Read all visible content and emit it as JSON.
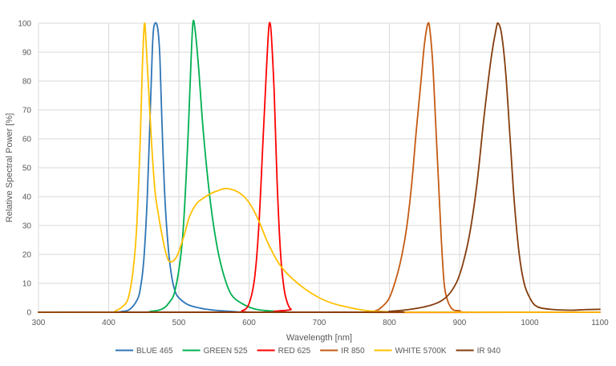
{
  "chart_data": {
    "type": "line",
    "title": "",
    "xlabel": "Wavelength [nm]",
    "ylabel": "Relative Spectral Power [%]",
    "xlim": [
      300,
      1100
    ],
    "ylim": [
      0,
      100
    ],
    "xticks": [
      300,
      400,
      500,
      600,
      700,
      800,
      900,
      1000,
      1100
    ],
    "yticks": [
      0,
      10,
      20,
      30,
      40,
      50,
      60,
      70,
      80,
      90,
      100
    ],
    "grid": true,
    "legend_position": "bottom",
    "series": [
      {
        "name": "BLUE 465",
        "color": "#2e75b6",
        "points": [
          [
            300,
            0
          ],
          [
            400,
            0
          ],
          [
            420,
            0.3
          ],
          [
            430,
            1
          ],
          [
            440,
            4
          ],
          [
            445,
            8
          ],
          [
            450,
            18
          ],
          [
            455,
            40
          ],
          [
            460,
            75
          ],
          [
            463,
            95
          ],
          [
            466,
            100
          ],
          [
            470,
            98
          ],
          [
            473,
            88
          ],
          [
            476,
            65
          ],
          [
            480,
            40
          ],
          [
            485,
            22
          ],
          [
            490,
            12
          ],
          [
            495,
            7
          ],
          [
            500,
            5
          ],
          [
            510,
            3
          ],
          [
            520,
            2
          ],
          [
            540,
            1
          ],
          [
            560,
            0.5
          ],
          [
            580,
            0.2
          ],
          [
            600,
            0
          ],
          [
            700,
            0
          ],
          [
            1100,
            0
          ]
        ]
      },
      {
        "name": "GREEN 525",
        "color": "#00b050",
        "points": [
          [
            300,
            0
          ],
          [
            440,
            0
          ],
          [
            460,
            0.3
          ],
          [
            475,
            1
          ],
          [
            485,
            3
          ],
          [
            495,
            8
          ],
          [
            505,
            25
          ],
          [
            512,
            55
          ],
          [
            517,
            85
          ],
          [
            520,
            100
          ],
          [
            523,
            98
          ],
          [
            528,
            85
          ],
          [
            535,
            62
          ],
          [
            545,
            38
          ],
          [
            555,
            22
          ],
          [
            565,
            12
          ],
          [
            575,
            6
          ],
          [
            590,
            3
          ],
          [
            610,
            1
          ],
          [
            640,
            0.3
          ],
          [
            660,
            0
          ],
          [
            1100,
            0
          ]
        ]
      },
      {
        "name": "RED 625",
        "color": "#ff0000",
        "points": [
          [
            300,
            0
          ],
          [
            570,
            0
          ],
          [
            590,
            0.5
          ],
          [
            600,
            3
          ],
          [
            608,
            12
          ],
          [
            614,
            30
          ],
          [
            620,
            60
          ],
          [
            625,
            85
          ],
          [
            628,
            98
          ],
          [
            630,
            100
          ],
          [
            632,
            95
          ],
          [
            636,
            75
          ],
          [
            640,
            45
          ],
          [
            645,
            20
          ],
          [
            650,
            8
          ],
          [
            655,
            3
          ],
          [
            660,
            1
          ],
          [
            670,
            0
          ],
          [
            1100,
            0
          ]
        ]
      },
      {
        "name": "IR 850",
        "color": "#c55a11",
        "points": [
          [
            300,
            0
          ],
          [
            760,
            0
          ],
          [
            780,
            0.5
          ],
          [
            790,
            2
          ],
          [
            800,
            5
          ],
          [
            810,
            12
          ],
          [
            818,
            20
          ],
          [
            825,
            30
          ],
          [
            832,
            45
          ],
          [
            838,
            62
          ],
          [
            845,
            80
          ],
          [
            850,
            93
          ],
          [
            855,
            100
          ],
          [
            858,
            97
          ],
          [
            862,
            85
          ],
          [
            866,
            65
          ],
          [
            870,
            45
          ],
          [
            874,
            25
          ],
          [
            878,
            10
          ],
          [
            883,
            4
          ],
          [
            890,
            1
          ],
          [
            900,
            0.5
          ],
          [
            920,
            0
          ],
          [
            1100,
            0
          ]
        ]
      },
      {
        "name": "WHITE 5700K",
        "color": "#ffc000",
        "points": [
          [
            300,
            0
          ],
          [
            400,
            0
          ],
          [
            410,
            0.5
          ],
          [
            420,
            2
          ],
          [
            428,
            5
          ],
          [
            435,
            15
          ],
          [
            440,
            30
          ],
          [
            445,
            60
          ],
          [
            448,
            85
          ],
          [
            451,
            100
          ],
          [
            454,
            90
          ],
          [
            458,
            72
          ],
          [
            462,
            55
          ],
          [
            466,
            42
          ],
          [
            470,
            35
          ],
          [
            475,
            28
          ],
          [
            480,
            22
          ],
          [
            485,
            18
          ],
          [
            490,
            17.5
          ],
          [
            495,
            18.5
          ],
          [
            500,
            21
          ],
          [
            508,
            27
          ],
          [
            515,
            33
          ],
          [
            525,
            37.5
          ],
          [
            535,
            39.5
          ],
          [
            545,
            41
          ],
          [
            555,
            42
          ],
          [
            565,
            42.8
          ],
          [
            575,
            42.5
          ],
          [
            585,
            41.5
          ],
          [
            595,
            39.5
          ],
          [
            605,
            36
          ],
          [
            615,
            31
          ],
          [
            625,
            25
          ],
          [
            635,
            20
          ],
          [
            645,
            16
          ],
          [
            660,
            12
          ],
          [
            680,
            8
          ],
          [
            700,
            5
          ],
          [
            720,
            3
          ],
          [
            740,
            1.8
          ],
          [
            760,
            0.8
          ],
          [
            780,
            0.3
          ],
          [
            800,
            0.1
          ],
          [
            820,
            0
          ],
          [
            1100,
            0
          ]
        ]
      },
      {
        "name": "IR 940",
        "color": "#843c0c",
        "points": [
          [
            300,
            0
          ],
          [
            780,
            0
          ],
          [
            800,
            0.3
          ],
          [
            830,
            1
          ],
          [
            860,
            2.5
          ],
          [
            880,
            5
          ],
          [
            895,
            10
          ],
          [
            905,
            17
          ],
          [
            915,
            28
          ],
          [
            925,
            45
          ],
          [
            935,
            68
          ],
          [
            945,
            88
          ],
          [
            952,
            98
          ],
          [
            955,
            100
          ],
          [
            960,
            96
          ],
          [
            966,
            82
          ],
          [
            972,
            60
          ],
          [
            978,
            38
          ],
          [
            985,
            20
          ],
          [
            992,
            10
          ],
          [
            1000,
            5
          ],
          [
            1010,
            2
          ],
          [
            1030,
            1
          ],
          [
            1060,
            0.7
          ],
          [
            1080,
            0.9
          ],
          [
            1100,
            1
          ]
        ]
      }
    ]
  }
}
